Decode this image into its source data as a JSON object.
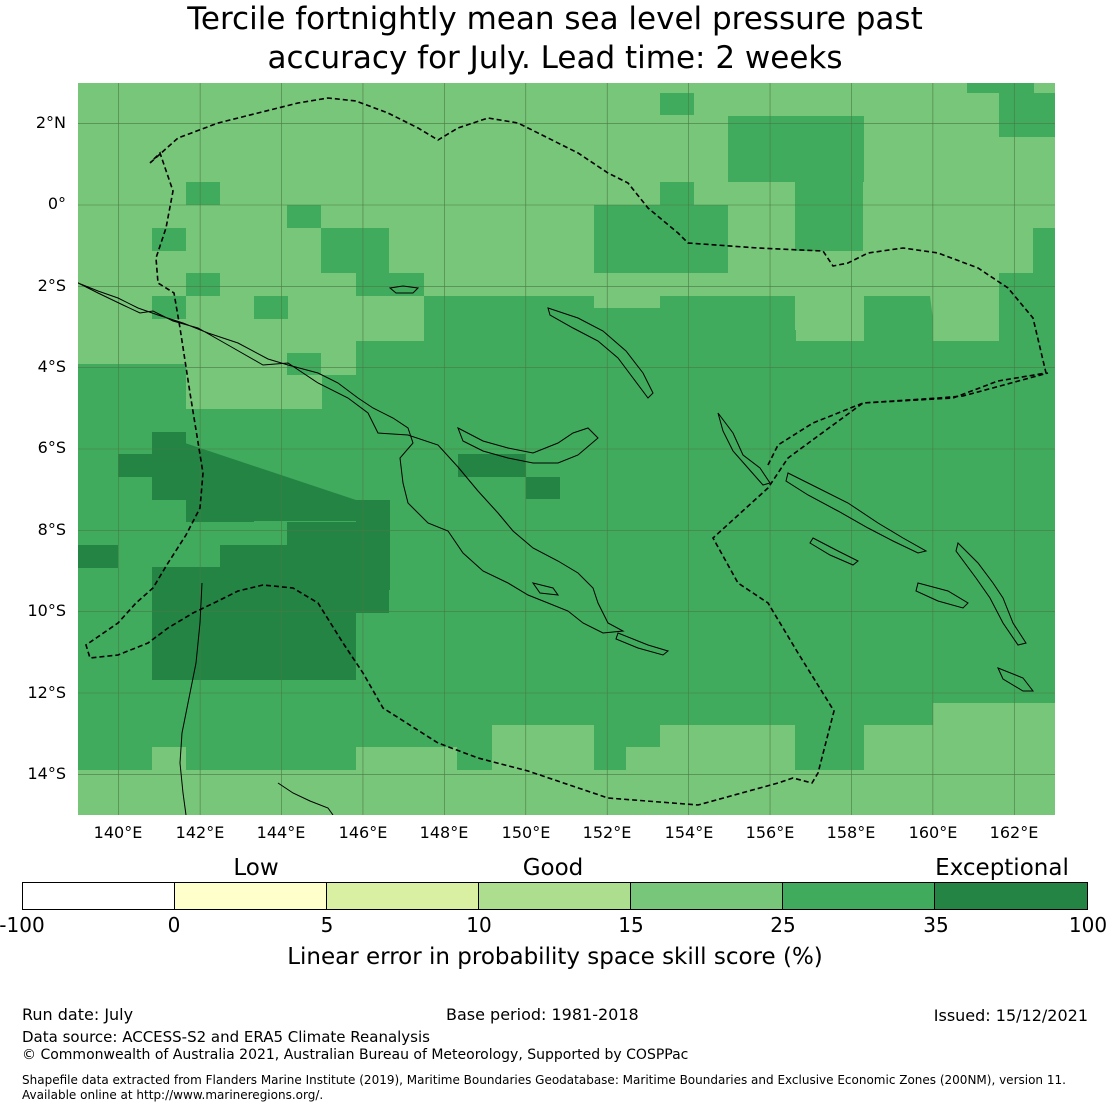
{
  "title_lines": [
    "Tercile fortnightly mean sea level pressure past",
    "accuracy for July. Lead time: 2 weeks"
  ],
  "map": {
    "lon_range": [
      139,
      163
    ],
    "lat_range": [
      -15,
      3
    ],
    "lon_ticks": [
      "140°E",
      "142°E",
      "144°E",
      "146°E",
      "148°E",
      "150°E",
      "152°E",
      "154°E",
      "156°E",
      "158°E",
      "160°E",
      "162°E"
    ],
    "lat_ticks": [
      "2°N",
      "0°",
      "2°S",
      "4°S",
      "6°S",
      "8°S",
      "10°S",
      "12°S",
      "14°S"
    ],
    "grid": "on",
    "coastline_color": "#000000",
    "eez_boundary": "dashed"
  },
  "legend": {
    "categories": [
      "Low",
      "Good",
      "Exceptional"
    ],
    "ticks": [
      "-100",
      "0",
      "5",
      "10",
      "15",
      "25",
      "35",
      "100"
    ],
    "colors": [
      "#ffffff",
      "#ffffcc",
      "#d9f0a3",
      "#addd8e",
      "#78c679",
      "#41ab5d",
      "#238443"
    ],
    "label": "Linear error in probability space skill score (%)"
  },
  "footer": {
    "run_date": "Run date: July",
    "base_period": "Base period: 1981-2018",
    "issued": "Issued: 15/12/2021",
    "data_source": "Data source: ACCESS-S2 and ERA5 Climate Reanalysis",
    "copyright": "© Commonwealth of Australia 2021, Australian Bureau of Meteorology, Supported by COSPPac",
    "shapefile_line1": "Shapefile data extracted from Flanders Marine Institute (2019), Maritime Boundaries Geodatabase: Maritime Boundaries and Exclusive Economic Zones (200NM), version 11.",
    "shapefile_line2": "Available online at http://www.marineregions.org/."
  }
}
